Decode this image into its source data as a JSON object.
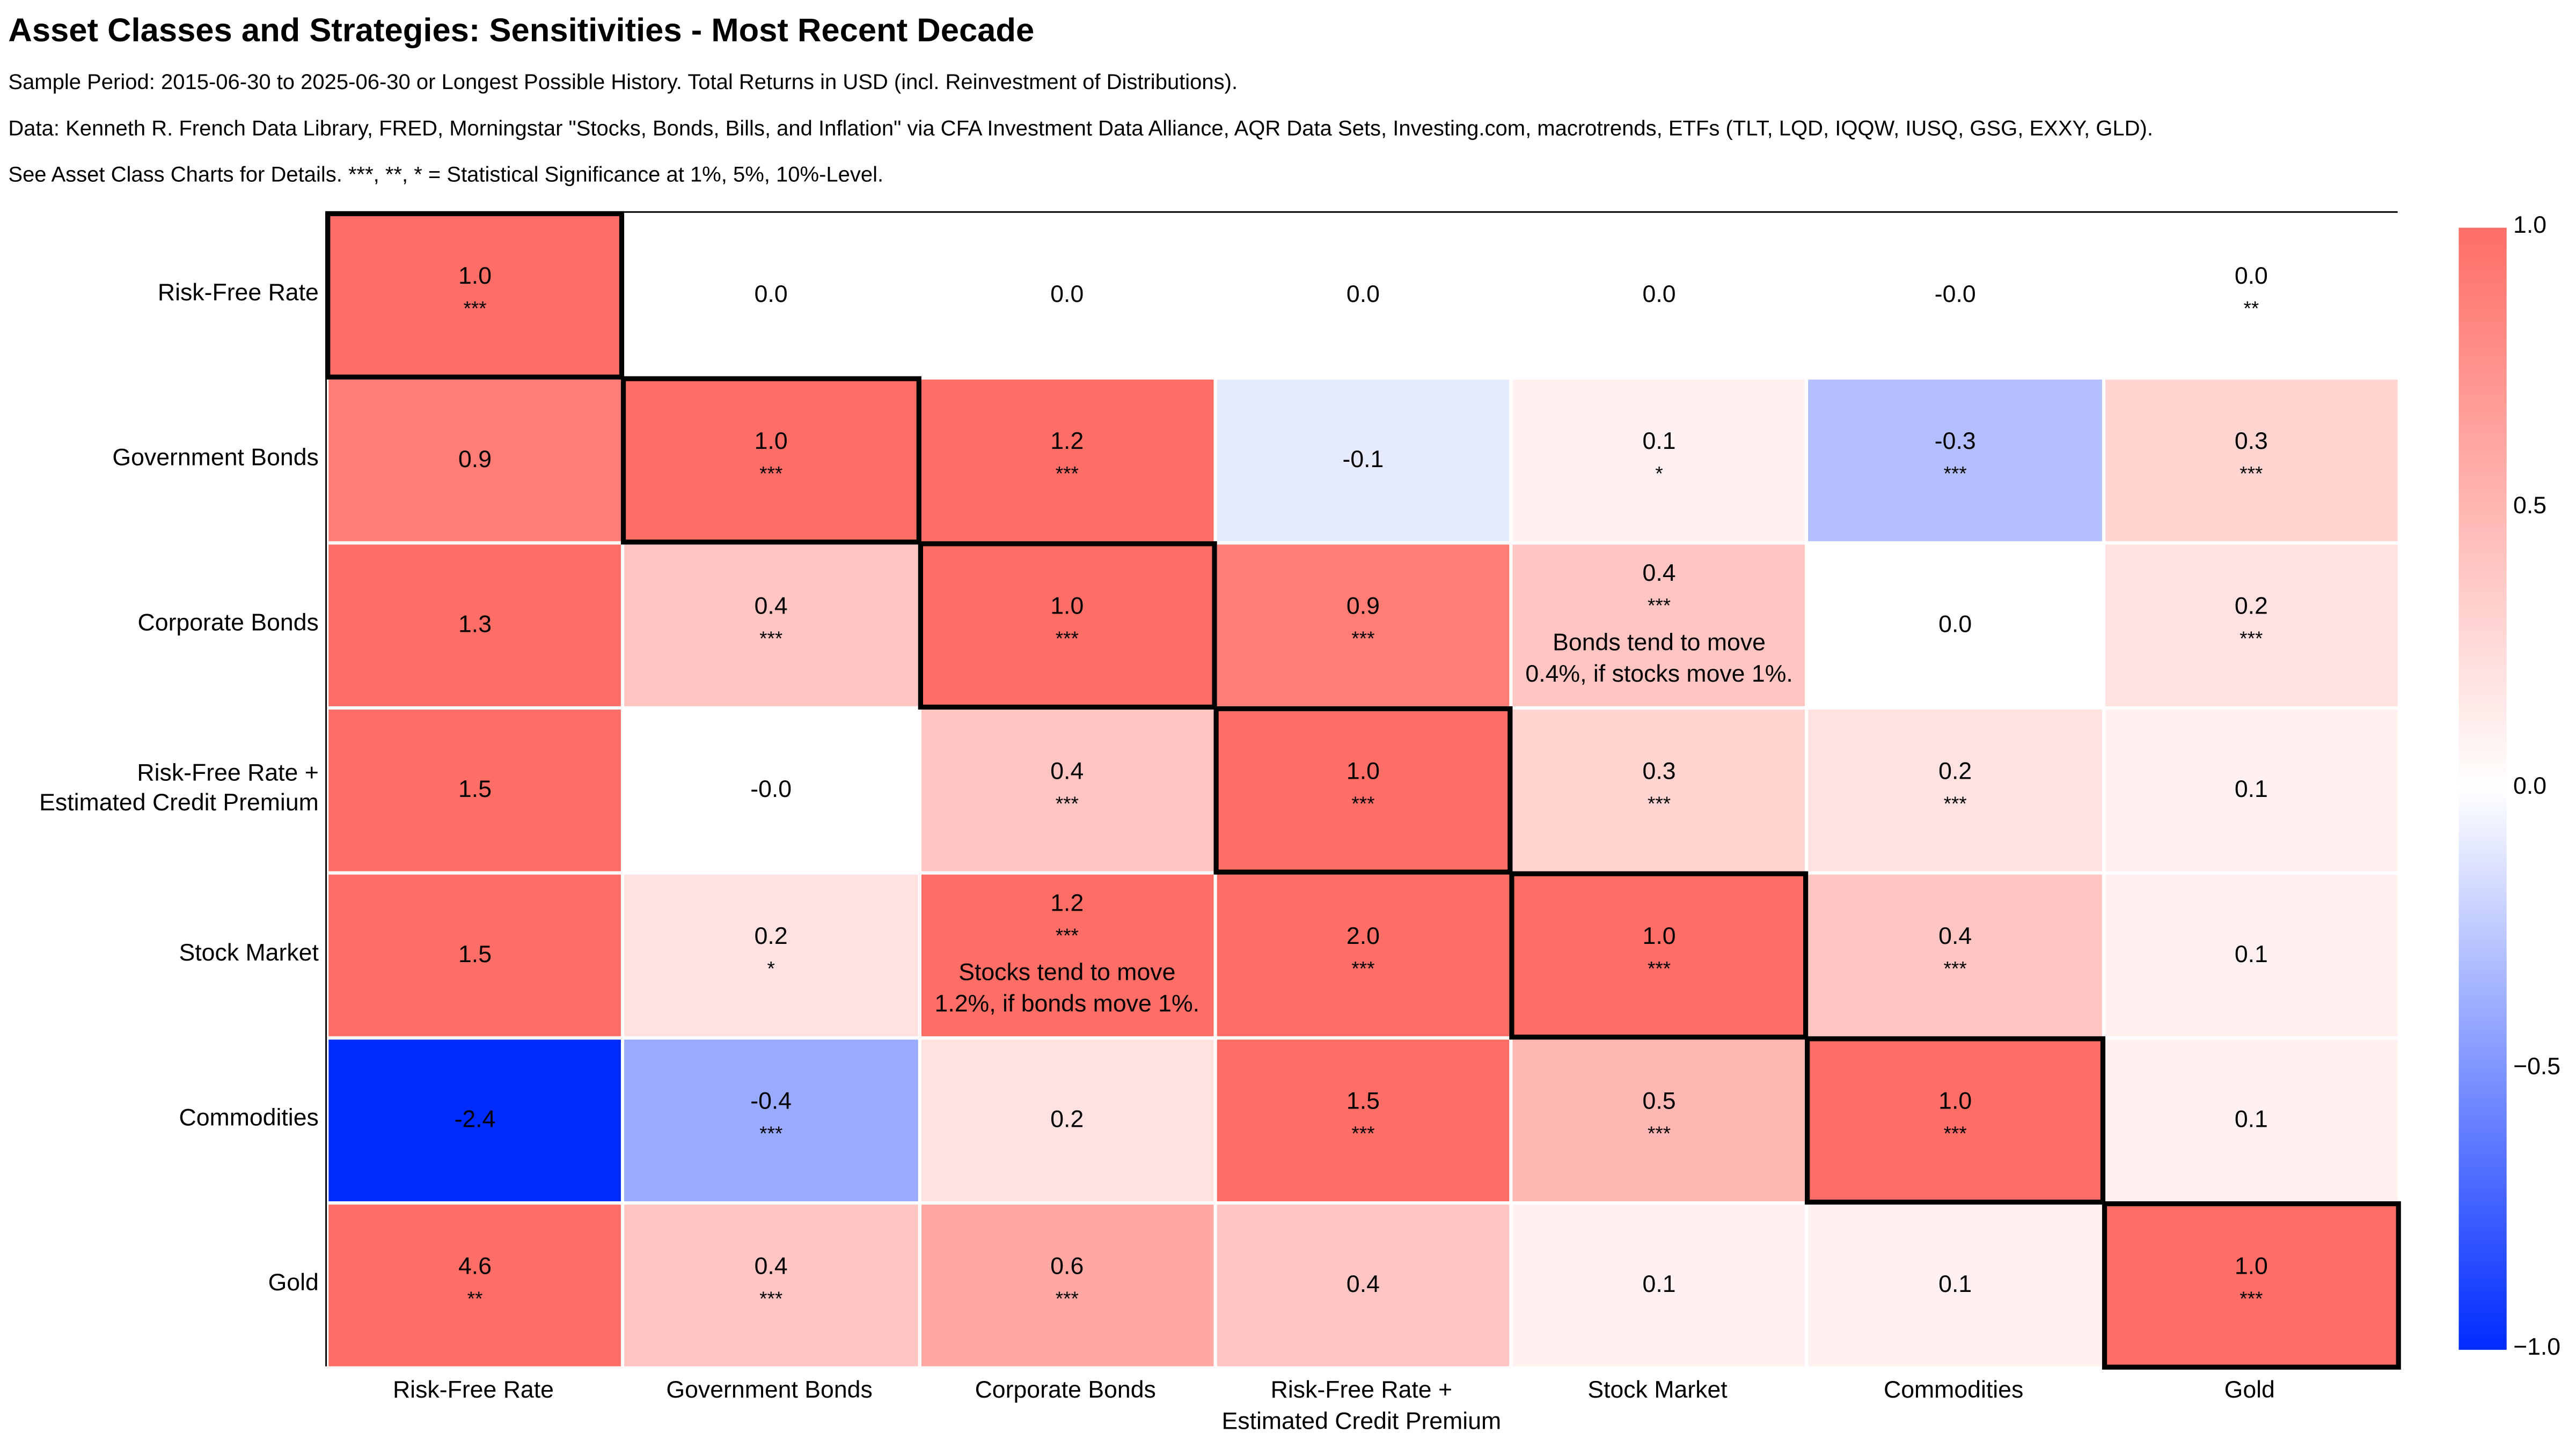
{
  "title": "Asset Classes and Strategies: Sensitivities - Most Recent Decade",
  "subtitles": [
    "Sample Period: 2015-06-30 to 2025-06-30 or Longest Possible History. Total Returns in USD (incl. Reinvestment of Distributions).",
    "Data: Kenneth R. French Data Library, FRED, Morningstar \"Stocks, Bonds, Bills, and Inflation\" via CFA Investment Data Alliance, AQR Data Sets, Investing.com, macrotrends, ETFs (TLT, LQD, IQQW, IUSQ, GSG, EXXY, GLD).",
    "See Asset Class Charts for Details. ***, **, * = Statistical Significance at 1%, 5%, 10%-Level."
  ],
  "chart_data": {
    "type": "heatmap",
    "rows": [
      "Risk-Free Rate",
      "Government Bonds",
      "Corporate Bonds",
      "Risk-Free Rate + Estimated Credit Premium",
      "Stock Market",
      "Commodities",
      "Gold"
    ],
    "row_labels": [
      [
        "Risk-Free Rate"
      ],
      [
        "Government Bonds"
      ],
      [
        "Corporate Bonds"
      ],
      [
        "Risk-Free Rate +",
        "Estimated Credit Premium"
      ],
      [
        "Stock Market"
      ],
      [
        "Commodities"
      ],
      [
        "Gold"
      ]
    ],
    "col_labels": [
      [
        "Risk-Free Rate"
      ],
      [
        "Government Bonds"
      ],
      [
        "Corporate Bonds"
      ],
      [
        "Risk-Free Rate +",
        "Estimated Credit Premium"
      ],
      [
        "Stock Market"
      ],
      [
        "Commodities"
      ],
      [
        "Gold"
      ]
    ],
    "values": [
      [
        "1.0",
        "0.0",
        "0.0",
        "0.0",
        "0.0",
        "-0.0",
        "0.0"
      ],
      [
        "0.9",
        "1.0",
        "1.2",
        "-0.1",
        "0.1",
        "-0.3",
        "0.3"
      ],
      [
        "1.3",
        "0.4",
        "1.0",
        "0.9",
        "0.4",
        "0.0",
        "0.2"
      ],
      [
        "1.5",
        "-0.0",
        "0.4",
        "1.0",
        "0.3",
        "0.2",
        "0.1"
      ],
      [
        "1.5",
        "0.2",
        "1.2",
        "2.0",
        "1.0",
        "0.4",
        "0.1"
      ],
      [
        "-2.4",
        "-0.4",
        "0.2",
        "1.5",
        "0.5",
        "1.0",
        "0.1"
      ],
      [
        "4.6",
        "0.4",
        "0.6",
        "0.4",
        "0.1",
        "0.1",
        "1.0"
      ]
    ],
    "significance": [
      [
        "***",
        "",
        "",
        "",
        "",
        "",
        "**"
      ],
      [
        "",
        "***",
        "***",
        "",
        "*",
        "***",
        "***"
      ],
      [
        "",
        "***",
        "***",
        "***",
        "***",
        "",
        "***"
      ],
      [
        "",
        "",
        "***",
        "***",
        "***",
        "***",
        ""
      ],
      [
        "",
        "*",
        "***",
        "***",
        "***",
        "***",
        ""
      ],
      [
        "",
        "***",
        "",
        "***",
        "***",
        "***",
        ""
      ],
      [
        "**",
        "***",
        "***",
        "",
        "",
        "",
        "***"
      ]
    ],
    "annotations": [
      {
        "row": 2,
        "col": 4,
        "lines": [
          "Bonds tend to move",
          "0.4%, if stocks move 1%."
        ]
      },
      {
        "row": 4,
        "col": 2,
        "lines": [
          "Stocks tend to move",
          "1.2%, if bonds move 1%."
        ]
      }
    ],
    "colorbar": {
      "vmin": -1.0,
      "vmax": 1.0,
      "ticks": [
        "1.0",
        "0.5",
        "0.0",
        "−0.5",
        "−1.0"
      ],
      "tick_values": [
        1.0,
        0.5,
        0.0,
        -0.5,
        -1.0
      ]
    },
    "colors": {
      "positive": "#ff6e66",
      "zero": "#ffffff",
      "negative": "#002bff"
    }
  }
}
